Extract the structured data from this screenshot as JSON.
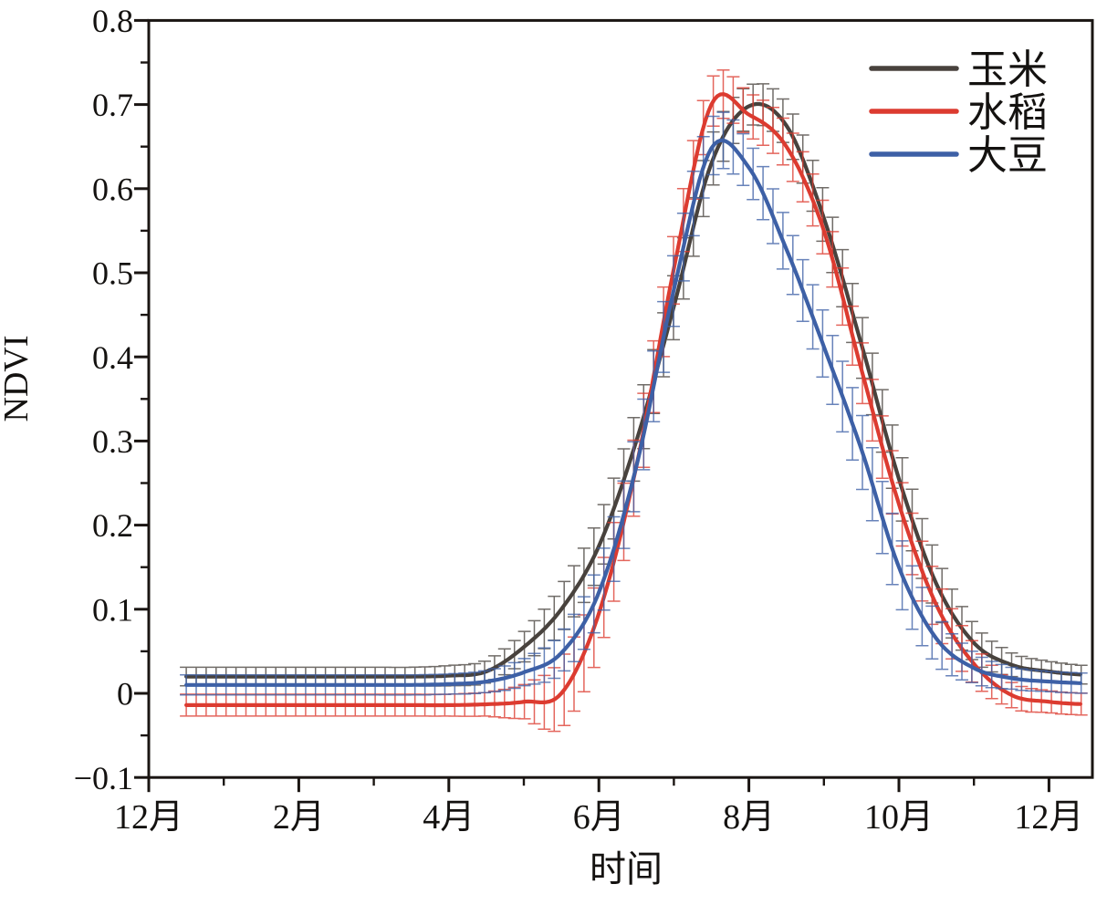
{
  "chart_data": {
    "type": "line",
    "title": "",
    "xlabel": "时间",
    "ylabel": "NDVI",
    "grid": false,
    "x_axis": {
      "unit": "month, December through following December",
      "tick_labels": [
        "12月",
        "2月",
        "4月",
        "6月",
        "8月",
        "10月",
        "12月"
      ],
      "tick_months": [
        0,
        2,
        4,
        6,
        8,
        10,
        12
      ],
      "minor_tick_months": [
        1,
        3,
        5,
        7,
        9,
        11
      ]
    },
    "y_axis": {
      "range": [
        -0.1,
        0.8
      ],
      "tick_values": [
        0.8,
        0.7,
        0.6,
        0.5,
        0.4,
        0.3,
        0.2,
        0.1,
        0,
        -0.1
      ],
      "tick_labels": [
        "0.8",
        "0.7",
        "0.6",
        "0.5",
        "0.4",
        "0.3",
        "0.2",
        "0.1",
        "0",
        "−0.1"
      ],
      "minor_step": 0.05
    },
    "legend": {
      "position": "top-right",
      "entries": [
        {
          "label": "玉米",
          "color": "#48423d"
        },
        {
          "label": "水稻",
          "color": "#dc3b30"
        },
        {
          "label": "大豆",
          "color": "#3d60a6"
        }
      ]
    },
    "error_bars": true,
    "series": [
      {
        "name": "玉米",
        "name_en": "corn",
        "color": "#48423d",
        "t_months_from_dec": [
          0.5,
          1.0,
          1.5,
          2.0,
          2.5,
          3.0,
          3.5,
          4.0,
          4.5,
          5.0,
          5.5,
          6.0,
          6.5,
          7.0,
          7.5,
          8.0,
          8.5,
          9.0,
          9.5,
          10.0,
          10.5,
          11.0,
          11.5,
          12.0,
          12.5
        ],
        "ndvi": [
          0.02,
          0.02,
          0.02,
          0.02,
          0.02,
          0.02,
          0.02,
          0.021,
          0.026,
          0.055,
          0.1,
          0.175,
          0.3,
          0.46,
          0.63,
          0.698,
          0.675,
          0.565,
          0.415,
          0.255,
          0.13,
          0.06,
          0.034,
          0.026,
          0.022
        ],
        "err": [
          0.011,
          0.011,
          0.011,
          0.011,
          0.011,
          0.011,
          0.011,
          0.012,
          0.013,
          0.018,
          0.028,
          0.035,
          0.038,
          0.038,
          0.032,
          0.024,
          0.026,
          0.032,
          0.036,
          0.038,
          0.034,
          0.022,
          0.014,
          0.012,
          0.011
        ],
        "peak": {
          "t_months_from_dec": 8.1,
          "ndvi": 0.7
        }
      },
      {
        "name": "水稻",
        "name_en": "rice",
        "color": "#dc3b30",
        "t_months_from_dec": [
          0.5,
          1.0,
          1.5,
          2.0,
          2.5,
          3.0,
          3.5,
          4.0,
          4.5,
          5.0,
          5.5,
          6.0,
          6.5,
          7.0,
          7.5,
          8.0,
          8.5,
          9.0,
          9.5,
          10.0,
          10.5,
          11.0,
          11.5,
          12.0,
          12.5
        ],
        "ndvi": [
          -0.014,
          -0.014,
          -0.014,
          -0.014,
          -0.014,
          -0.014,
          -0.014,
          -0.014,
          -0.013,
          -0.01,
          0.0,
          0.095,
          0.27,
          0.505,
          0.7,
          0.688,
          0.65,
          0.55,
          0.385,
          0.225,
          0.105,
          0.035,
          -0.002,
          -0.01,
          -0.013
        ],
        "err": [
          0.013,
          0.013,
          0.013,
          0.013,
          0.013,
          0.013,
          0.013,
          0.013,
          0.014,
          0.02,
          0.042,
          0.048,
          0.045,
          0.04,
          0.03,
          0.026,
          0.028,
          0.032,
          0.036,
          0.038,
          0.034,
          0.024,
          0.015,
          0.013,
          0.013
        ],
        "peak": {
          "t_months_from_dec": 7.6,
          "ndvi": 0.71
        }
      },
      {
        "name": "大豆",
        "name_en": "soybean",
        "color": "#3d60a6",
        "t_months_from_dec": [
          0.5,
          1.0,
          1.5,
          2.0,
          2.5,
          3.0,
          3.5,
          4.0,
          4.5,
          5.0,
          5.5,
          6.0,
          6.5,
          7.0,
          7.5,
          8.0,
          8.5,
          9.0,
          9.5,
          10.0,
          10.5,
          11.0,
          11.5,
          12.0,
          12.5
        ],
        "ndvi": [
          0.01,
          0.01,
          0.01,
          0.01,
          0.01,
          0.01,
          0.01,
          0.011,
          0.014,
          0.025,
          0.048,
          0.12,
          0.27,
          0.48,
          0.648,
          0.625,
          0.528,
          0.412,
          0.29,
          0.15,
          0.065,
          0.03,
          0.018,
          0.014,
          0.012
        ],
        "err": [
          0.012,
          0.012,
          0.012,
          0.012,
          0.012,
          0.012,
          0.012,
          0.012,
          0.013,
          0.016,
          0.024,
          0.036,
          0.042,
          0.042,
          0.035,
          0.03,
          0.034,
          0.04,
          0.044,
          0.042,
          0.03,
          0.018,
          0.013,
          0.012,
          0.012
        ],
        "peak": {
          "t_months_from_dec": 7.6,
          "ndvi": 0.66
        }
      }
    ],
    "axis_color": "#1a1512"
  }
}
